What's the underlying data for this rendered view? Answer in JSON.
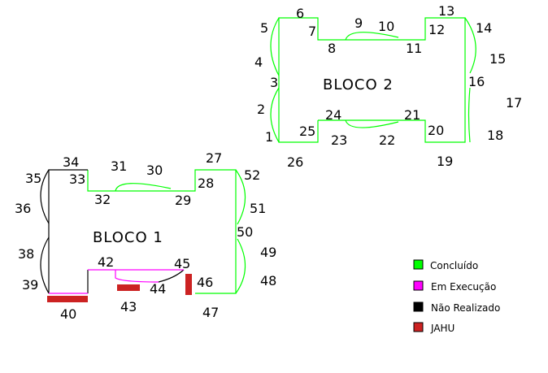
{
  "colors": {
    "concluido": "#00ff00",
    "em_execucao": "#ff00ff",
    "nao_realizado": "#000000",
    "jahu": "#cc2222"
  },
  "blocks": {
    "bloco1": "BLOCO  1",
    "bloco2": "BLOCO  2"
  },
  "numbers": {
    "n1": "1",
    "n2": "2",
    "n3": "3",
    "n4": "4",
    "n5": "5",
    "n6": "6",
    "n7": "7",
    "n8": "8",
    "n9": "9",
    "n10": "10",
    "n11": "11",
    "n12": "12",
    "n13": "13",
    "n14": "14",
    "n15": "15",
    "n16": "16",
    "n17": "17",
    "n18": "18",
    "n19": "19",
    "n20": "20",
    "n21": "21",
    "n22": "22",
    "n23": "23",
    "n24": "24",
    "n25": "25",
    "n26": "26",
    "n27": "27",
    "n28": "28",
    "n29": "29",
    "n30": "30",
    "n31": "31",
    "n32": "32",
    "n33": "33",
    "n34": "34",
    "n35": "35",
    "n36": "36",
    "n38": "38",
    "n39": "39",
    "n40": "40",
    "n42": "42",
    "n43": "43",
    "n44": "44",
    "n45": "45",
    "n46": "46",
    "n47": "47",
    "n48": "48",
    "n49": "49",
    "n50": "50",
    "n51": "51",
    "n52": "52"
  },
  "legend": {
    "concluido": "Concluído",
    "em_execucao": "Em Execução",
    "nao_realizado": "Não Realizado",
    "jahu": "JAHU"
  }
}
